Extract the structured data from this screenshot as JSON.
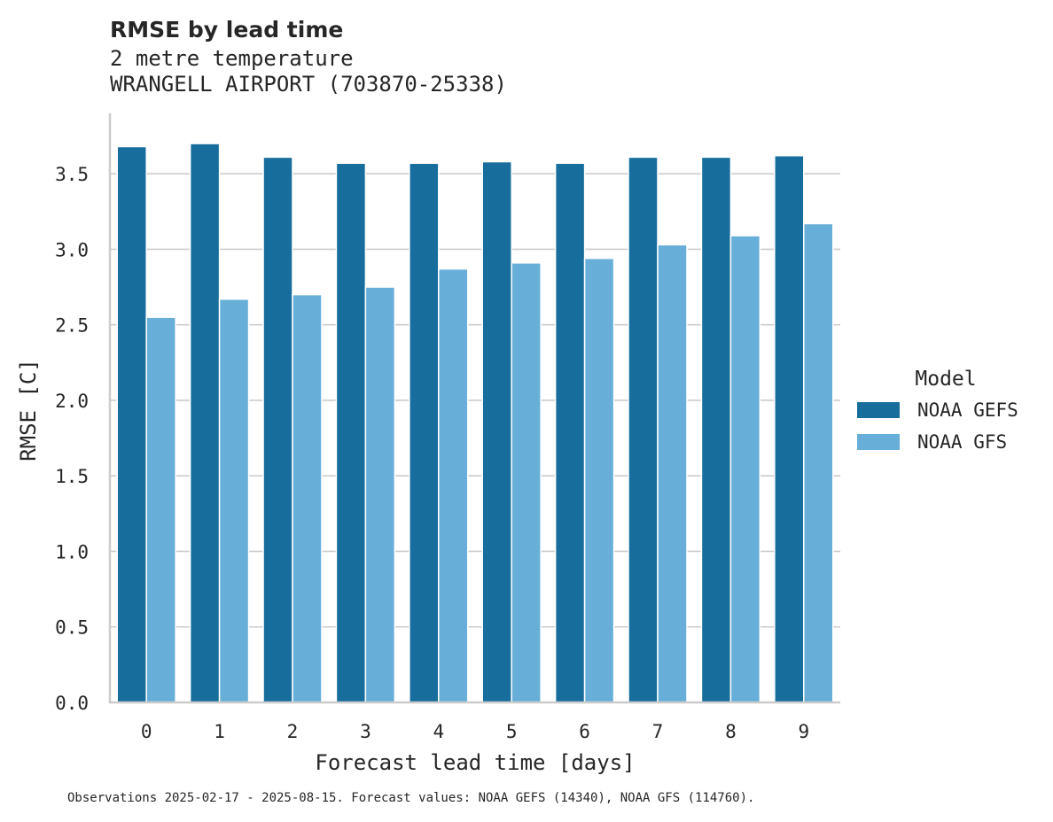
{
  "chart_data": {
    "type": "bar",
    "title": "RMSE by lead time",
    "subtitle_lines": [
      "2 metre temperature",
      "WRANGELL AIRPORT (703870-25338)"
    ],
    "xlabel": "Forecast lead time [days]",
    "ylabel": "RMSE [C]",
    "categories": [
      "0",
      "1",
      "2",
      "3",
      "4",
      "5",
      "6",
      "7",
      "8",
      "9"
    ],
    "series": [
      {
        "name": "NOAA GEFS",
        "color": "#176d9c",
        "values": [
          3.68,
          3.7,
          3.61,
          3.57,
          3.57,
          3.58,
          3.57,
          3.61,
          3.61,
          3.62
        ]
      },
      {
        "name": "NOAA GFS",
        "color": "#67afd8",
        "values": [
          2.55,
          2.67,
          2.7,
          2.75,
          2.87,
          2.91,
          2.94,
          3.03,
          3.09,
          3.17
        ]
      }
    ],
    "ylim": [
      0,
      3.9
    ],
    "yticks": [
      "0.0",
      "0.5",
      "1.0",
      "1.5",
      "2.0",
      "2.5",
      "3.0",
      "3.5"
    ],
    "grid": "horizontal",
    "legend": {
      "title": "Model",
      "placement": "right"
    },
    "footnote": "Observations 2025-02-17 - 2025-08-15. Forecast values: NOAA GEFS (14340), NOAA GFS (114760)."
  }
}
